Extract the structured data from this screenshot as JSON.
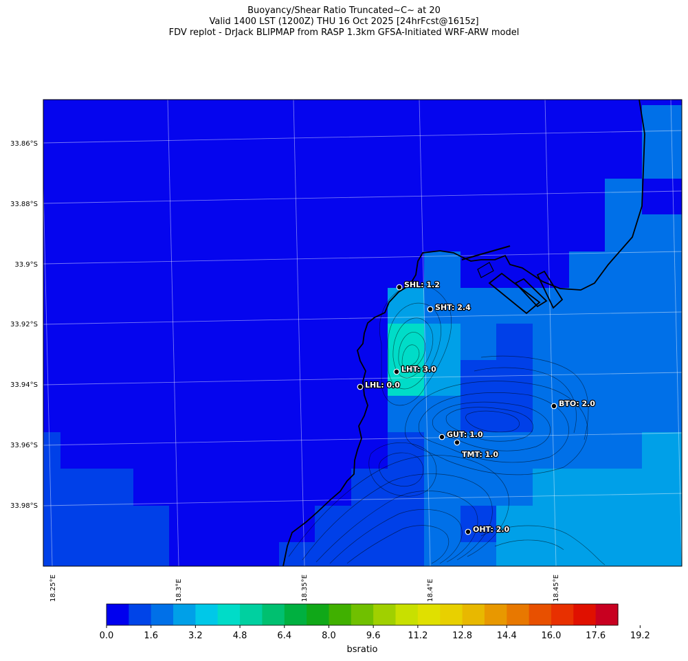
{
  "header": {
    "line1": "Buoyancy/Shear Ratio Truncated~C~    at 20",
    "line2": "Valid 1400 LST (1200Z) THU 16 Oct 2025 [24hrFcst@1615z]",
    "line3": "FDV replot - DrJack BLIPMAP from RASP 1.3km GFSA-Initiated WRF-ARW model"
  },
  "map": {
    "lat_labels": [
      "33.86°S",
      "33.88°S",
      "33.9°S",
      "33.92°S",
      "33.94°S",
      "33.96°S",
      "33.98°S"
    ],
    "lon_labels": [
      "18.25°E",
      "18.3°E",
      "18.35°E",
      "18.4°E",
      "18.45°E"
    ],
    "stations": [
      {
        "label": "SHL: 1.2",
        "code": "SHL",
        "value": 1.2
      },
      {
        "label": "SHT: 2.4",
        "code": "SHT",
        "value": 2.4
      },
      {
        "label": "LHT: 3.0",
        "code": "LHT",
        "value": 3.0
      },
      {
        "label": "LHL: 0.0",
        "code": "LHL",
        "value": 0.0
      },
      {
        "label": "BTO: 2.0",
        "code": "BTO",
        "value": 2.0
      },
      {
        "label": "GUT: 1.0",
        "code": "GUT",
        "value": 1.0
      },
      {
        "label": "TMT: 1.0",
        "code": "TMT",
        "value": 1.0
      },
      {
        "label": "OHT: 2.0",
        "code": "OHT",
        "value": 2.0
      }
    ]
  },
  "colorbar": {
    "label": "bsratio",
    "ticks": [
      "0.0",
      "1.6",
      "3.2",
      "4.8",
      "6.4",
      "8.0",
      "9.6",
      "11.2",
      "12.8",
      "14.4",
      "16.0",
      "17.6",
      "19.2"
    ],
    "colors": [
      "#0000ee",
      "#0044e8",
      "#0070e8",
      "#00a0e8",
      "#00c8e8",
      "#00dcc8",
      "#00d0a0",
      "#00c070",
      "#00b040",
      "#10a818",
      "#40b000",
      "#70c000",
      "#a0d000",
      "#c8e000",
      "#e0e000",
      "#e8d000",
      "#e8b800",
      "#e89800",
      "#e87800",
      "#e85000",
      "#e83000",
      "#e01000",
      "#c80020"
    ]
  }
}
